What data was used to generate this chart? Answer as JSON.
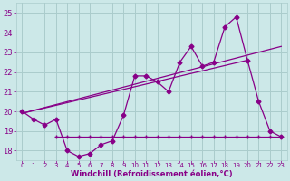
{
  "xlabel": "Windchill (Refroidissement éolien,°C)",
  "background_color": "#cce8e8",
  "line_color": "#880088",
  "grid_color": "#aacccc",
  "xlim": [
    -0.5,
    23.5
  ],
  "ylim": [
    17.5,
    25.5
  ],
  "yticks": [
    18,
    19,
    20,
    21,
    22,
    23,
    24,
    25
  ],
  "xticks": [
    0,
    1,
    2,
    3,
    4,
    5,
    6,
    7,
    8,
    9,
    10,
    11,
    12,
    13,
    14,
    15,
    16,
    17,
    18,
    19,
    20,
    21,
    22,
    23
  ],
  "series1_x": [
    0,
    1,
    2,
    3,
    4,
    5,
    6,
    7,
    8,
    9,
    10,
    11,
    12,
    13,
    14,
    15,
    16,
    17,
    18,
    19,
    20,
    21,
    22,
    23
  ],
  "series1_y": [
    20.0,
    19.6,
    19.3,
    19.6,
    18.0,
    17.7,
    17.85,
    18.3,
    18.5,
    19.8,
    21.8,
    21.8,
    21.5,
    21.0,
    22.5,
    23.3,
    22.3,
    22.5,
    24.3,
    24.8,
    22.6,
    20.5,
    19.0,
    18.7
  ],
  "series2_x": [
    3,
    4,
    5,
    6,
    7,
    8,
    9,
    10,
    11,
    12,
    13,
    14,
    15,
    16,
    17,
    18,
    19,
    20,
    21,
    22,
    23
  ],
  "series2_y": [
    18.7,
    18.7,
    18.7,
    18.7,
    18.7,
    18.7,
    18.7,
    18.7,
    18.7,
    18.7,
    18.7,
    18.7,
    18.7,
    18.7,
    18.7,
    18.7,
    18.7,
    18.7,
    18.7,
    18.7,
    18.7
  ],
  "series3_x": [
    0,
    23
  ],
  "series3_y": [
    19.9,
    23.3
  ],
  "series4_x": [
    0,
    20
  ],
  "series4_y": [
    19.9,
    22.6
  ]
}
